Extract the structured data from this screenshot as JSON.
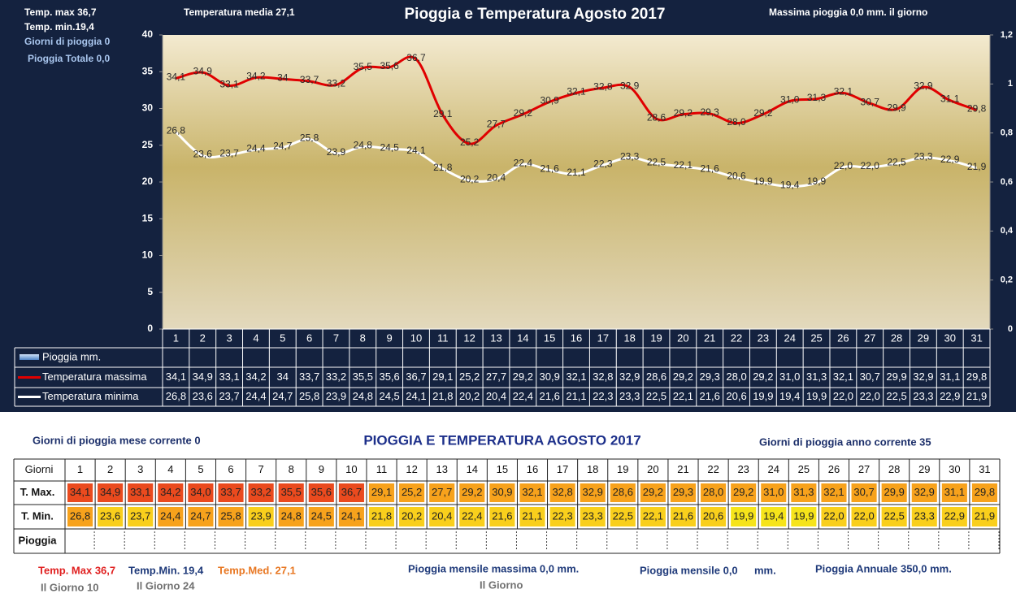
{
  "chart_data": {
    "type": "line",
    "title": "Pioggia e Temperatura Agosto 2017",
    "annotations": [
      "Temp. max  36,7",
      "Temp.  min.19,4",
      "Giorni  di pioggia   0",
      "Pioggia Totale   0,0",
      "Temperatura media  27,1",
      "Massima pioggia  0,0    mm.  il giorno"
    ],
    "categories": [
      "1",
      "2",
      "3",
      "4",
      "5",
      "6",
      "7",
      "8",
      "9",
      "10",
      "11",
      "12",
      "13",
      "14",
      "15",
      "16",
      "17",
      "18",
      "19",
      "20",
      "21",
      "22",
      "23",
      "24",
      "25",
      "26",
      "27",
      "28",
      "29",
      "30",
      "31"
    ],
    "ylim": [
      0,
      40
    ],
    "yticks": [
      0,
      5,
      10,
      15,
      20,
      25,
      30,
      35,
      40
    ],
    "y2lim": [
      0,
      1.2
    ],
    "y2ticks": [
      0,
      {
        "value": 0.2,
        "label": "0,2"
      },
      {
        "value": 0.4,
        "label": "0,4"
      },
      {
        "value": 0.6,
        "label": "0,6"
      },
      {
        "value": 0.8,
        "label": "0,8"
      },
      1,
      {
        "value": 1.2,
        "label": "1,2"
      }
    ],
    "series": [
      {
        "name": "Pioggia mm.",
        "type": "bar",
        "axis": "y2",
        "color": "#6ea0d8",
        "values": [
          0,
          0,
          0,
          0,
          0,
          0,
          0,
          0,
          0,
          0,
          0,
          0,
          0,
          0,
          0,
          0,
          0,
          0,
          0,
          0,
          0,
          0,
          0,
          0,
          0,
          0,
          0,
          0,
          0,
          0,
          0
        ]
      },
      {
        "name": "Temperatura massima",
        "type": "line",
        "color": "#e00000",
        "values": [
          34.1,
          34.9,
          33.1,
          34.2,
          34,
          33.7,
          33.2,
          35.5,
          35.6,
          36.7,
          29.1,
          25.2,
          27.7,
          29.2,
          30.9,
          32.1,
          32.8,
          32.9,
          28.6,
          29.2,
          29.3,
          28.0,
          29.2,
          31.0,
          31.3,
          32.1,
          30.7,
          29.9,
          32.9,
          31.1,
          29.8
        ],
        "value_labels": [
          "34,1",
          "34,9",
          "33,1",
          "34,2",
          "34",
          "33,7",
          "33,2",
          "35,5",
          "35,6",
          "36,7",
          "29,1",
          "25,2",
          "27,7",
          "29,2",
          "30,9",
          "32,1",
          "32,8",
          "32,9",
          "28,6",
          "29,2",
          "29,3",
          "28,0",
          "29,2",
          "31,0",
          "31,3",
          "32,1",
          "30,7",
          "29,9",
          "32,9",
          "31,1",
          "29,8"
        ]
      },
      {
        "name": "Temperatura minima",
        "type": "line",
        "color": "#ffffff",
        "values": [
          26.8,
          23.6,
          23.7,
          24.4,
          24.7,
          25.8,
          23.9,
          24.8,
          24.5,
          24.1,
          21.8,
          20.2,
          20.4,
          22.4,
          21.6,
          21.1,
          22.3,
          23.3,
          22.5,
          22.1,
          21.6,
          20.6,
          19.9,
          19.4,
          19.9,
          22.0,
          22.0,
          22.5,
          23.3,
          22.9,
          21.9
        ],
        "value_labels": [
          "26,8",
          "23,6",
          "23,7",
          "24,4",
          "24,7",
          "25,8",
          "23,9",
          "24,8",
          "24,5",
          "24,1",
          "21,8",
          "20,2",
          "20,4",
          "22,4",
          "21,6",
          "21,1",
          "22,3",
          "23,3",
          "22,5",
          "22,1",
          "21,6",
          "20,6",
          "19,9",
          "19,4",
          "19,9",
          "22,0",
          "22,0",
          "22,5",
          "23,3",
          "22,9",
          "21,9"
        ]
      }
    ]
  },
  "table": {
    "title": "PIOGGIA E TEMPERATURA AGOSTO 2017",
    "left_note": "Giorni di pioggia mese corrente   0",
    "right_note": "Giorni di pioggia anno corrente  35",
    "row_headers": [
      "Giorni",
      "T. Max.",
      "T. Min.",
      "Pioggia"
    ],
    "days": [
      "1",
      "2",
      "3",
      "4",
      "5",
      "6",
      "7",
      "8",
      "9",
      "10",
      "11",
      "12",
      "13",
      "14",
      "15",
      "16",
      "17",
      "18",
      "19",
      "20",
      "21",
      "22",
      "23",
      "24",
      "25",
      "26",
      "27",
      "28",
      "29",
      "30",
      "31"
    ],
    "tmax": [
      "34,1",
      "34,9",
      "33,1",
      "34,2",
      "34,0",
      "33,7",
      "33,2",
      "35,5",
      "35,6",
      "36,7",
      "29,1",
      "25,2",
      "27,7",
      "29,2",
      "30,9",
      "32,1",
      "32,8",
      "32,9",
      "28,6",
      "29,2",
      "29,3",
      "28,0",
      "29,2",
      "31,0",
      "31,3",
      "32,1",
      "30,7",
      "29,9",
      "32,9",
      "31,1",
      "29,8"
    ],
    "tmin": [
      "26,8",
      "23,6",
      "23,7",
      "24,4",
      "24,7",
      "25,8",
      "23,9",
      "24,8",
      "24,5",
      "24,1",
      "21,8",
      "20,2",
      "20,4",
      "22,4",
      "21,6",
      "21,1",
      "22,3",
      "23,3",
      "22,5",
      "22,1",
      "21,6",
      "20,6",
      "19,9",
      "19,4",
      "19,9",
      "22,0",
      "22,0",
      "22,5",
      "23,3",
      "22,9",
      "21,9"
    ]
  },
  "footer": [
    "Temp. Max 36,7",
    "Il Giorno  10",
    "Temp.Min. 19,4",
    "Il Giorno 24",
    "Temp.Med. 27,1",
    "Pioggia mensile massima 0,0 mm.",
    "Il Giorno",
    "Pioggia mensile 0,0",
    "mm.",
    "Pioggia Annuale 350,0 mm."
  ]
}
